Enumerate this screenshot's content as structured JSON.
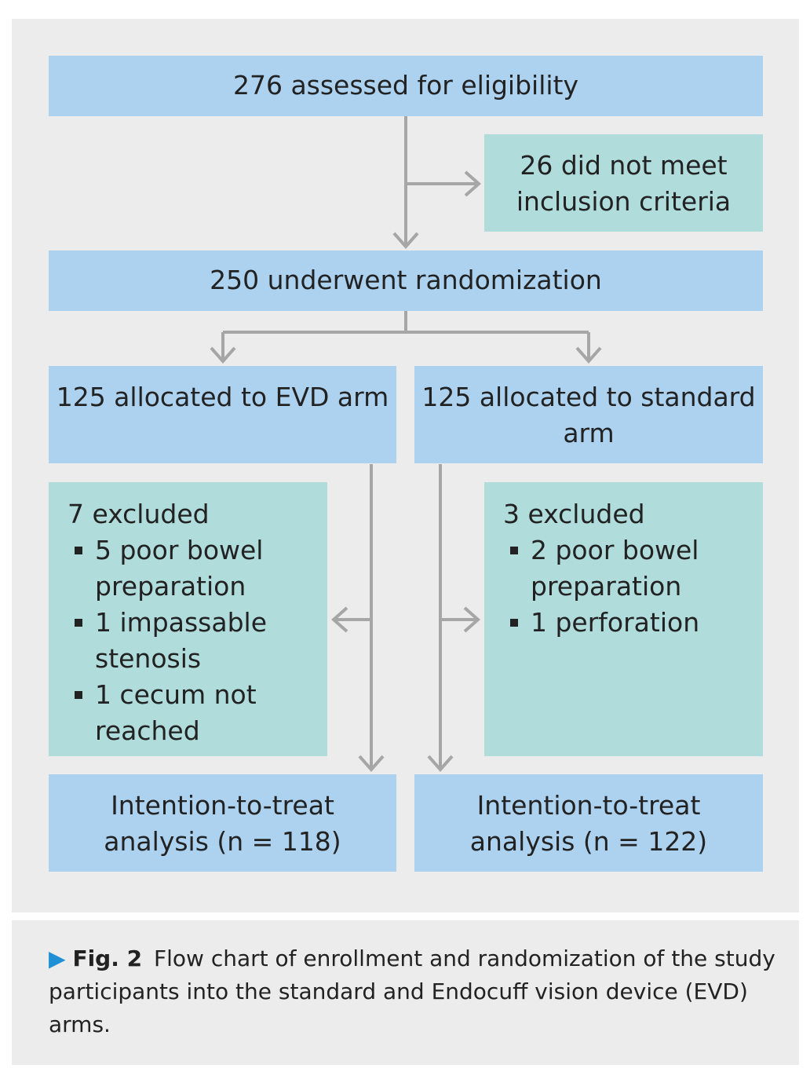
{
  "flowchart": {
    "assessed": "276 assessed for eligibility",
    "not_met": [
      "26 did not meet",
      "inclusion criteria"
    ],
    "randomized": "250 underwent randomization",
    "evd_arm": [
      "125 allocated to EVD arm"
    ],
    "standard_arm": [
      "125 allocated to standard",
      "arm"
    ],
    "evd_excluded": {
      "title": "7 excluded",
      "items": [
        [
          "5 poor bowel",
          "preparation"
        ],
        [
          "1 impassable",
          "stenosis"
        ],
        [
          "1 cecum not",
          "reached"
        ]
      ]
    },
    "standard_excluded": {
      "title": "3 excluded",
      "items": [
        [
          "2 poor bowel",
          "preparation"
        ],
        [
          "1 perforation"
        ]
      ]
    },
    "evd_itt": [
      "Intention-to-treat",
      "analysis (n = 118)"
    ],
    "standard_itt": [
      "Intention-to-treat",
      "analysis (n = 122)"
    ]
  },
  "caption": {
    "marker": "▶",
    "label": "Fig. 2",
    "text": "Flow chart of enrollment and randomization of the study participants into the standard and Endocuff vision device (EVD) arms."
  },
  "colors": {
    "panel": "#ececec",
    "blue_box": "#acd2f0",
    "teal_box": "#b0dcdc",
    "connector": "#a6a6a6",
    "caption_marker": "#1f8fd6"
  }
}
